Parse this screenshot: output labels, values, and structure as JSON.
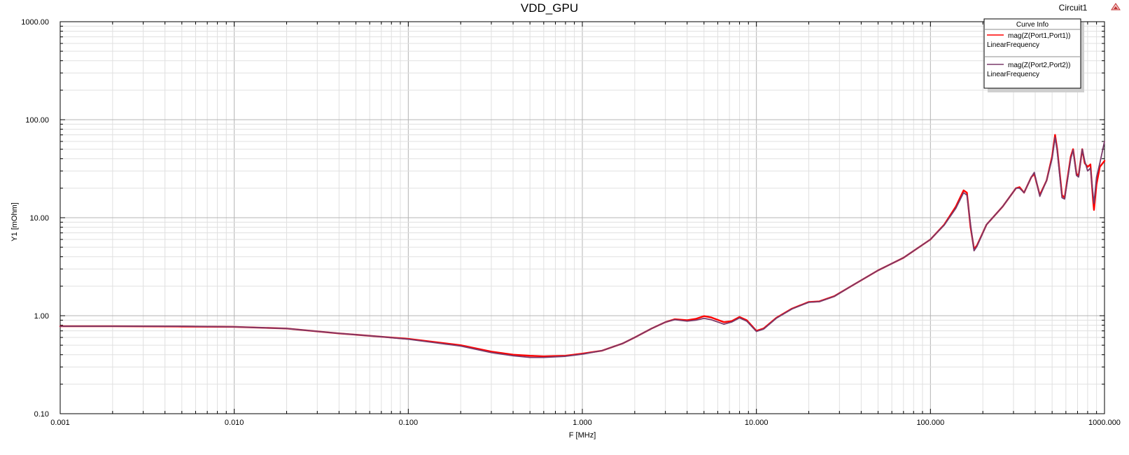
{
  "chart_data": {
    "type": "line",
    "title": "VDD_GPU",
    "design_name": "Circuit1",
    "xlabel": "F [MHz]",
    "ylabel": "Y1 [mOhm]",
    "x_scale": "log",
    "y_scale": "log",
    "xlim": [
      0.001,
      1000
    ],
    "ylim": [
      0.1,
      1000
    ],
    "x_ticks": [
      0.001,
      0.01,
      0.1,
      1,
      10,
      100,
      1000
    ],
    "x_tick_labels": [
      "0.001",
      "0.010",
      "0.100",
      "1.000",
      "10.000",
      "100.000",
      "1000.000"
    ],
    "y_ticks": [
      0.1,
      1,
      10,
      100,
      1000
    ],
    "y_tick_labels": [
      "0.10",
      "1.00",
      "10.00",
      "100.00",
      "1000.00"
    ],
    "grid": true,
    "legend": {
      "title": "Curve Info",
      "position": "top-right"
    },
    "series": [
      {
        "name": "mag(Z(Port1,Port1))",
        "subtitle": "LinearFrequency",
        "color": "#ff0000",
        "points": [
          [
            0.001,
            0.78
          ],
          [
            0.002,
            0.78
          ],
          [
            0.005,
            0.775
          ],
          [
            0.01,
            0.77
          ],
          [
            0.02,
            0.74
          ],
          [
            0.04,
            0.66
          ],
          [
            0.07,
            0.61
          ],
          [
            0.1,
            0.58
          ],
          [
            0.2,
            0.5
          ],
          [
            0.3,
            0.43
          ],
          [
            0.4,
            0.4
          ],
          [
            0.5,
            0.39
          ],
          [
            0.6,
            0.385
          ],
          [
            0.8,
            0.39
          ],
          [
            1,
            0.41
          ],
          [
            1.3,
            0.44
          ],
          [
            1.7,
            0.52
          ],
          [
            2,
            0.6
          ],
          [
            2.5,
            0.74
          ],
          [
            3,
            0.86
          ],
          [
            3.4,
            0.92
          ],
          [
            4,
            0.9
          ],
          [
            4.5,
            0.93
          ],
          [
            5,
            0.99
          ],
          [
            5.5,
            0.96
          ],
          [
            6.5,
            0.86
          ],
          [
            7.2,
            0.88
          ],
          [
            8,
            0.97
          ],
          [
            8.8,
            0.9
          ],
          [
            10,
            0.7
          ],
          [
            11,
            0.74
          ],
          [
            13,
            0.95
          ],
          [
            16,
            1.18
          ],
          [
            20,
            1.38
          ],
          [
            23,
            1.4
          ],
          [
            28,
            1.58
          ],
          [
            35,
            2.0
          ],
          [
            50,
            2.9
          ],
          [
            70,
            3.9
          ],
          [
            100,
            6.0
          ],
          [
            120,
            8.5
          ],
          [
            140,
            13
          ],
          [
            155,
            19
          ],
          [
            162,
            18
          ],
          [
            170,
            8
          ],
          [
            178,
            4.8
          ],
          [
            185,
            5.2
          ],
          [
            210,
            8.5
          ],
          [
            260,
            13
          ],
          [
            310,
            20
          ],
          [
            325,
            20.5
          ],
          [
            345,
            18
          ],
          [
            380,
            26
          ],
          [
            395,
            28
          ],
          [
            425,
            17
          ],
          [
            465,
            24
          ],
          [
            500,
            42
          ],
          [
            520,
            70
          ],
          [
            535,
            50
          ],
          [
            570,
            17
          ],
          [
            590,
            16
          ],
          [
            640,
            42
          ],
          [
            660,
            50
          ],
          [
            690,
            28
          ],
          [
            710,
            27
          ],
          [
            745,
            50
          ],
          [
            770,
            36
          ],
          [
            800,
            33
          ],
          [
            830,
            35
          ],
          [
            860,
            15
          ],
          [
            870,
            12
          ],
          [
            900,
            22
          ],
          [
            940,
            33
          ],
          [
            1000,
            38
          ]
        ]
      },
      {
        "name": "mag(Z(Port2,Port2))",
        "subtitle": "LinearFrequency",
        "color": "#7a3a6a",
        "points": [
          [
            0.001,
            0.78
          ],
          [
            0.002,
            0.78
          ],
          [
            0.005,
            0.78
          ],
          [
            0.01,
            0.77
          ],
          [
            0.02,
            0.74
          ],
          [
            0.04,
            0.66
          ],
          [
            0.07,
            0.61
          ],
          [
            0.1,
            0.575
          ],
          [
            0.2,
            0.49
          ],
          [
            0.3,
            0.42
          ],
          [
            0.4,
            0.39
          ],
          [
            0.5,
            0.375
          ],
          [
            0.6,
            0.375
          ],
          [
            0.8,
            0.385
          ],
          [
            1,
            0.405
          ],
          [
            1.3,
            0.44
          ],
          [
            1.7,
            0.52
          ],
          [
            2,
            0.6
          ],
          [
            2.5,
            0.74
          ],
          [
            3,
            0.86
          ],
          [
            3.4,
            0.91
          ],
          [
            4,
            0.88
          ],
          [
            4.5,
            0.9
          ],
          [
            5,
            0.94
          ],
          [
            5.5,
            0.91
          ],
          [
            6.5,
            0.82
          ],
          [
            7.2,
            0.86
          ],
          [
            8,
            0.95
          ],
          [
            8.8,
            0.88
          ],
          [
            10,
            0.69
          ],
          [
            11,
            0.73
          ],
          [
            13,
            0.94
          ],
          [
            16,
            1.17
          ],
          [
            20,
            1.37
          ],
          [
            23,
            1.39
          ],
          [
            28,
            1.57
          ],
          [
            35,
            2.0
          ],
          [
            50,
            2.9
          ],
          [
            70,
            3.9
          ],
          [
            100,
            6.0
          ],
          [
            120,
            8.4
          ],
          [
            140,
            12.5
          ],
          [
            155,
            18
          ],
          [
            162,
            17
          ],
          [
            170,
            8.5
          ],
          [
            178,
            4.6
          ],
          [
            185,
            5.1
          ],
          [
            210,
            8.5
          ],
          [
            260,
            13
          ],
          [
            310,
            20
          ],
          [
            325,
            20
          ],
          [
            345,
            18
          ],
          [
            380,
            26
          ],
          [
            395,
            29
          ],
          [
            425,
            16.5
          ],
          [
            465,
            24
          ],
          [
            500,
            40
          ],
          [
            520,
            66
          ],
          [
            535,
            48
          ],
          [
            570,
            16
          ],
          [
            590,
            15.5
          ],
          [
            640,
            40
          ],
          [
            660,
            49
          ],
          [
            690,
            27
          ],
          [
            710,
            26
          ],
          [
            745,
            50
          ],
          [
            770,
            38
          ],
          [
            800,
            30
          ],
          [
            830,
            32
          ],
          [
            860,
            17
          ],
          [
            870,
            14
          ],
          [
            900,
            26
          ],
          [
            940,
            36
          ],
          [
            1000,
            60
          ]
        ]
      }
    ]
  }
}
